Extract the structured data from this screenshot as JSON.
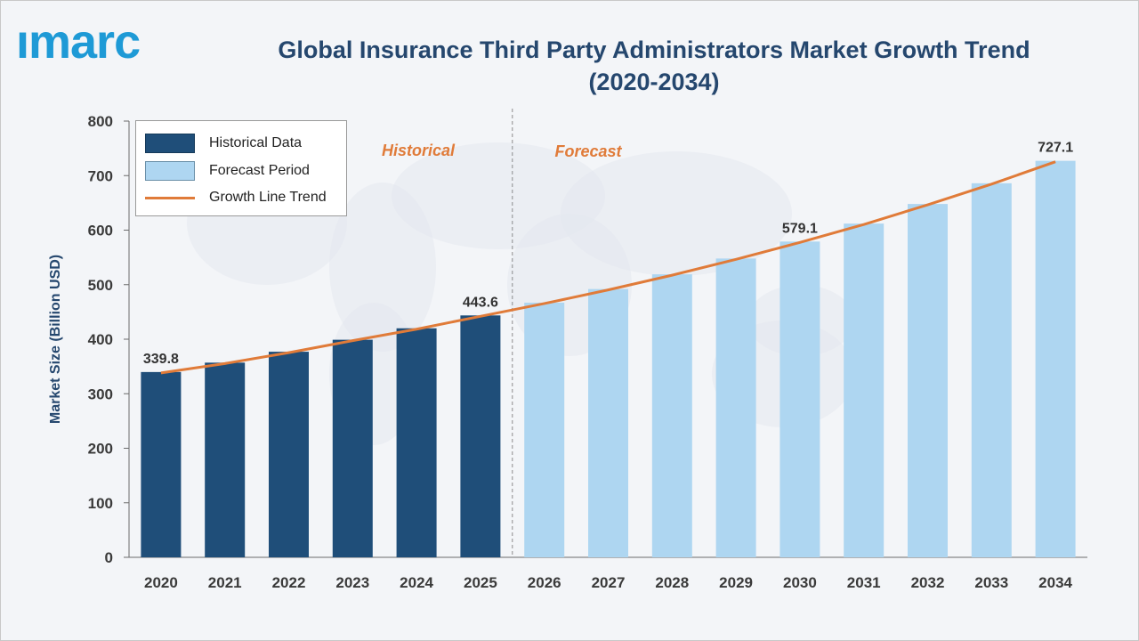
{
  "logo": {
    "text": "ımarc"
  },
  "title": "Global Insurance Third Party Administrators Market Growth Trend (2020-2034)",
  "colors": {
    "historical": "#1f4e79",
    "forecast": "#aed6f1",
    "trend": "#e07b39",
    "title": "#25476e",
    "logo": "#1e9ad6"
  },
  "legend": {
    "historical": "Historical Data",
    "forecast": "Forecast Period",
    "trend": "Growth Line Trend"
  },
  "annotations": {
    "historical": "Historical",
    "forecast": "Forecast"
  },
  "chart_data": {
    "type": "bar",
    "title": "Global Insurance Third Party Administrators Market Growth Trend (2020-2034)",
    "xlabel": "",
    "ylabel": "Market Size (Billion USD)",
    "ylim": [
      0,
      800
    ],
    "yticks": [
      0,
      100,
      200,
      300,
      400,
      500,
      600,
      700,
      800
    ],
    "categories": [
      "2020",
      "2021",
      "2022",
      "2023",
      "2024",
      "2025",
      "2026",
      "2027",
      "2028",
      "2029",
      "2030",
      "2031",
      "2032",
      "2033",
      "2034"
    ],
    "values": [
      339.8,
      357,
      377,
      399,
      420,
      443.6,
      467,
      492,
      519,
      548,
      579.1,
      612,
      648,
      686,
      727.1
    ],
    "historical_count": 6,
    "data_labels": [
      {
        "category": "2020",
        "text": "339.8"
      },
      {
        "category": "2025",
        "text": "443.6"
      },
      {
        "category": "2030",
        "text": "579.1"
      },
      {
        "category": "2034",
        "text": "727.1"
      }
    ],
    "series": [
      {
        "name": "Historical Data",
        "categories": [
          "2020",
          "2021",
          "2022",
          "2023",
          "2024",
          "2025"
        ]
      },
      {
        "name": "Forecast Period",
        "categories": [
          "2026",
          "2027",
          "2028",
          "2029",
          "2030",
          "2031",
          "2032",
          "2033",
          "2034"
        ]
      },
      {
        "name": "Growth Line Trend",
        "type": "line"
      }
    ],
    "legend_position": "top-left",
    "grid": false
  }
}
